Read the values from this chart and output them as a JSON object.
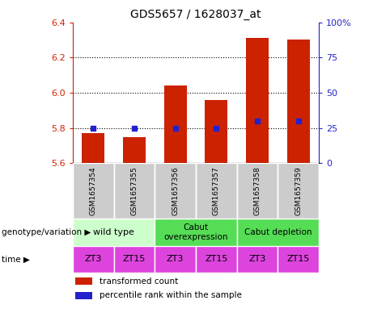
{
  "title": "GDS5657 / 1628037_at",
  "samples": [
    "GSM1657354",
    "GSM1657355",
    "GSM1657356",
    "GSM1657357",
    "GSM1657358",
    "GSM1657359"
  ],
  "transformed_counts": [
    5.77,
    5.75,
    6.04,
    5.96,
    6.31,
    6.3
  ],
  "percentile_ranks": [
    25,
    25,
    25,
    25,
    30,
    30
  ],
  "y_min": 5.6,
  "y_max": 6.4,
  "y_ticks": [
    5.6,
    5.8,
    6.0,
    6.2,
    6.4
  ],
  "y2_ticks": [
    0,
    25,
    50,
    75,
    100
  ],
  "bar_color": "#cc2200",
  "dot_color": "#2222cc",
  "wildtype_color": "#ccffcc",
  "cabut_over_color": "#55dd55",
  "cabut_dep_color": "#55dd55",
  "time_color": "#dd44dd",
  "sample_bg_color": "#cccccc",
  "genotype_label": "genotype/variation",
  "time_row_label": "time",
  "time_labels": [
    "ZT3",
    "ZT15",
    "ZT3",
    "ZT15",
    "ZT3",
    "ZT15"
  ],
  "legend_items": [
    {
      "label": "transformed count",
      "color": "#cc2200"
    },
    {
      "label": "percentile rank within the sample",
      "color": "#2222cc"
    }
  ]
}
